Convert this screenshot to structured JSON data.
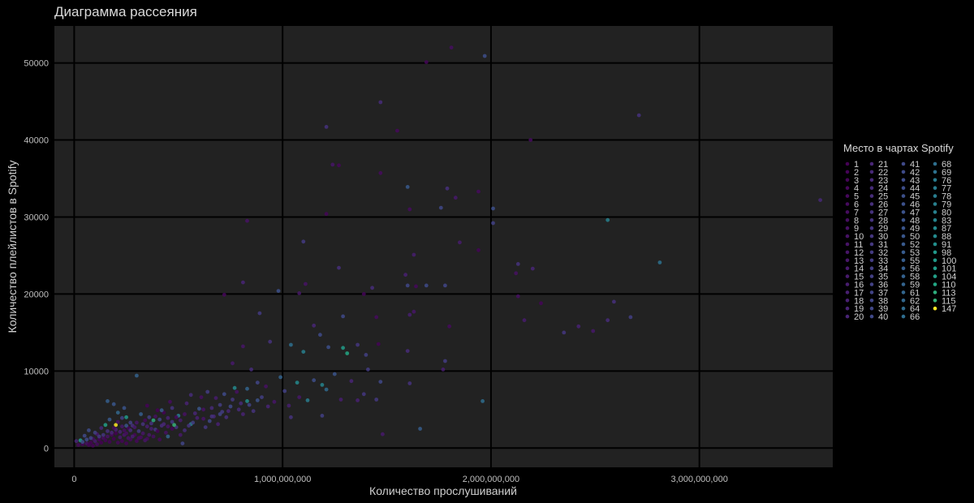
{
  "chart_data": {
    "type": "scatter",
    "title": "Диаграмма рассеяния",
    "xlabel": "Количество прослушиваний",
    "ylabel": "Количество плейлистов в Spotify",
    "xlim": [
      -95000000,
      3640000000
    ],
    "ylim": [
      -2500,
      54800
    ],
    "x_ticks": [
      0,
      1000000000,
      2000000000,
      3000000000
    ],
    "x_tick_labels": [
      "0",
      "1,000,000,000",
      "2,000,000,000",
      "3,000,000,000"
    ],
    "y_ticks": [
      0,
      10000,
      20000,
      30000,
      40000,
      50000
    ],
    "y_tick_labels": [
      "0",
      "10000",
      "20000",
      "30000",
      "40000",
      "50000"
    ],
    "grid": true,
    "legend_title": "Место в чартах Spotify",
    "legend_position": "right",
    "legend_entries": [
      "1",
      "2",
      "3",
      "4",
      "5",
      "6",
      "7",
      "8",
      "9",
      "10",
      "11",
      "12",
      "13",
      "14",
      "15",
      "16",
      "17",
      "18",
      "19",
      "20",
      "21",
      "22",
      "23",
      "24",
      "25",
      "26",
      "27",
      "28",
      "29",
      "30",
      "31",
      "32",
      "33",
      "34",
      "35",
      "36",
      "37",
      "38",
      "39",
      "40",
      "41",
      "42",
      "43",
      "44",
      "45",
      "46",
      "47",
      "48",
      "49",
      "50",
      "52",
      "53",
      "55",
      "56",
      "58",
      "59",
      "61",
      "62",
      "64",
      "66",
      "68",
      "69",
      "76",
      "77",
      "78",
      "79",
      "80",
      "83",
      "87",
      "88",
      "91",
      "98",
      "100",
      "101",
      "104",
      "110",
      "113",
      "115",
      "147"
    ],
    "colors": {
      "background": "#000000",
      "panel": "#222222",
      "grid": "#000000",
      "text": "#cfcfcf",
      "scale": "viridis"
    },
    "points": [
      [
        1810000000,
        52000,
        8
      ],
      [
        1970000000,
        50900,
        44
      ],
      [
        1690000000,
        50100,
        3
      ],
      [
        1470000000,
        44900,
        24
      ],
      [
        2710000000,
        43200,
        27
      ],
      [
        1210000000,
        41700,
        27
      ],
      [
        1550000000,
        41200,
        5
      ],
      [
        2190000000,
        40000,
        7
      ],
      [
        1240000000,
        36800,
        12
      ],
      [
        1270000000,
        36700,
        4
      ],
      [
        1470000000,
        35700,
        6
      ],
      [
        1600000000,
        33900,
        52
      ],
      [
        1790000000,
        33700,
        26
      ],
      [
        1940000000,
        33300,
        6
      ],
      [
        1830000000,
        32500,
        14
      ],
      [
        3580000000,
        32200,
        22
      ],
      [
        1610000000,
        31000,
        7
      ],
      [
        2010000000,
        31100,
        45
      ],
      [
        1760000000,
        31200,
        40
      ],
      [
        1210000000,
        30400,
        3
      ],
      [
        2010000000,
        29200,
        36
      ],
      [
        2560000000,
        29600,
        80
      ],
      [
        830000000,
        29500,
        10
      ],
      [
        1850000000,
        26700,
        15
      ],
      [
        1100000000,
        26800,
        32
      ],
      [
        1630000000,
        25100,
        16
      ],
      [
        1940000000,
        25700,
        3
      ],
      [
        2810000000,
        24100,
        69
      ],
      [
        2130000000,
        23900,
        28
      ],
      [
        1270000000,
        23400,
        26
      ],
      [
        2200000000,
        23300,
        21
      ],
      [
        1590000000,
        22500,
        18
      ],
      [
        2120000000,
        22700,
        9
      ],
      [
        810000000,
        21500,
        20
      ],
      [
        1110000000,
        21300,
        11
      ],
      [
        1600000000,
        21100,
        39
      ],
      [
        1690000000,
        21100,
        42
      ],
      [
        1780000000,
        21100,
        38
      ],
      [
        1640000000,
        21000,
        5
      ],
      [
        1430000000,
        20800,
        25
      ],
      [
        980000000,
        20400,
        46
      ],
      [
        1080000000,
        20100,
        13
      ],
      [
        1390000000,
        20000,
        3
      ],
      [
        720000000,
        19900,
        4
      ],
      [
        2130000000,
        19700,
        8
      ],
      [
        2240000000,
        18800,
        3
      ],
      [
        2590000000,
        19000,
        26
      ],
      [
        1630000000,
        17700,
        12
      ],
      [
        1610000000,
        17300,
        17
      ],
      [
        890000000,
        17500,
        32
      ],
      [
        1290000000,
        17100,
        41
      ],
      [
        1450000000,
        17000,
        6
      ],
      [
        2670000000,
        17000,
        34
      ],
      [
        2160000000,
        16600,
        15
      ],
      [
        2560000000,
        16600,
        24
      ],
      [
        1800000000,
        15800,
        6
      ],
      [
        1150000000,
        15900,
        21
      ],
      [
        2420000000,
        15800,
        19
      ],
      [
        2350000000,
        15000,
        30
      ],
      [
        2490000000,
        15200,
        13
      ],
      [
        1180000000,
        14700,
        42
      ],
      [
        1040000000,
        13400,
        68
      ],
      [
        1100000000,
        12500,
        79
      ],
      [
        1290000000,
        13000,
        101
      ],
      [
        1310000000,
        12300,
        110
      ],
      [
        1220000000,
        13100,
        45
      ],
      [
        940000000,
        13800,
        27
      ],
      [
        810000000,
        13200,
        12
      ],
      [
        1600000000,
        12600,
        24
      ],
      [
        1400000000,
        12100,
        35
      ],
      [
        1360000000,
        13400,
        30
      ],
      [
        1460000000,
        13500,
        3
      ],
      [
        1780000000,
        11300,
        33
      ],
      [
        1770000000,
        10200,
        16
      ],
      [
        1410000000,
        10200,
        33
      ],
      [
        990000000,
        9200,
        59
      ],
      [
        1070000000,
        8500,
        88
      ],
      [
        1190000000,
        8200,
        83
      ],
      [
        1250000000,
        9600,
        48
      ],
      [
        300000000,
        9400,
        58
      ],
      [
        1610000000,
        8400,
        27
      ],
      [
        1960000000,
        6100,
        66
      ],
      [
        1660000000,
        2500,
        55
      ],
      [
        1480000000,
        1800,
        14
      ],
      [
        760000000,
        11000,
        14
      ],
      [
        850000000,
        10200,
        25
      ],
      [
        920000000,
        8000,
        9
      ],
      [
        1010000000,
        7400,
        36
      ],
      [
        1150000000,
        8800,
        44
      ],
      [
        1330000000,
        8700,
        20
      ],
      [
        1470000000,
        8600,
        40
      ],
      [
        1390000000,
        7000,
        30
      ],
      [
        1280000000,
        6300,
        16
      ],
      [
        1080000000,
        6600,
        13
      ],
      [
        1210000000,
        7600,
        64
      ],
      [
        1360000000,
        6200,
        18
      ],
      [
        1450000000,
        6300,
        31
      ],
      [
        1040000000,
        4000,
        28
      ],
      [
        1030000000,
        5500,
        17
      ],
      [
        1120000000,
        6200,
        77
      ],
      [
        1190000000,
        4200,
        35
      ],
      [
        830000000,
        6100,
        91
      ],
      [
        880000000,
        6200,
        47
      ],
      [
        720000000,
        7000,
        42
      ],
      [
        770000000,
        7800,
        87
      ],
      [
        560000000,
        3100,
        76
      ],
      [
        620000000,
        3800,
        11
      ],
      [
        660000000,
        5200,
        23
      ],
      [
        700000000,
        4400,
        37
      ],
      [
        610000000,
        6600,
        8
      ],
      [
        540000000,
        5800,
        19
      ],
      [
        470000000,
        5200,
        29
      ],
      [
        430000000,
        4600,
        2
      ],
      [
        390000000,
        4100,
        9
      ],
      [
        360000000,
        4000,
        34
      ],
      [
        340000000,
        3600,
        5
      ],
      [
        300000000,
        3300,
        12
      ],
      [
        280000000,
        2900,
        26
      ],
      [
        260000000,
        2600,
        3
      ],
      [
        240000000,
        2300,
        7
      ],
      [
        220000000,
        2100,
        18
      ],
      [
        200000000,
        1900,
        1
      ],
      [
        180000000,
        1700,
        4
      ],
      [
        160000000,
        1500,
        10
      ],
      [
        140000000,
        1300,
        6
      ],
      [
        120000000,
        1100,
        2
      ],
      [
        100000000,
        900,
        15
      ],
      [
        80000000,
        700,
        1
      ],
      [
        60000000,
        600,
        9
      ],
      [
        40000000,
        500,
        3
      ],
      [
        20000000,
        400,
        5
      ],
      [
        10000000,
        900,
        20
      ],
      [
        30000000,
        1000,
        98
      ],
      [
        50000000,
        1600,
        41
      ],
      [
        70000000,
        2300,
        43
      ],
      [
        90000000,
        1200,
        8
      ],
      [
        110000000,
        1800,
        13
      ],
      [
        130000000,
        2600,
        22
      ],
      [
        150000000,
        3000,
        104
      ],
      [
        170000000,
        3700,
        52
      ],
      [
        190000000,
        5700,
        50
      ],
      [
        210000000,
        4600,
        62
      ],
      [
        230000000,
        3900,
        36
      ],
      [
        250000000,
        2900,
        48
      ],
      [
        270000000,
        2300,
        24
      ],
      [
        290000000,
        1700,
        4
      ],
      [
        310000000,
        1300,
        6
      ],
      [
        330000000,
        1900,
        12
      ],
      [
        350000000,
        2800,
        16
      ],
      [
        370000000,
        3200,
        27
      ],
      [
        390000000,
        2400,
        31
      ],
      [
        410000000,
        3700,
        38
      ],
      [
        430000000,
        3100,
        21
      ],
      [
        450000000,
        2800,
        11
      ],
      [
        470000000,
        3400,
        32
      ],
      [
        490000000,
        2700,
        28
      ],
      [
        510000000,
        1700,
        14
      ],
      [
        530000000,
        2300,
        25
      ],
      [
        550000000,
        2900,
        29
      ],
      [
        570000000,
        3300,
        35
      ],
      [
        590000000,
        3900,
        17
      ],
      [
        630000000,
        2700,
        30
      ],
      [
        650000000,
        3500,
        39
      ],
      [
        670000000,
        4100,
        22
      ],
      [
        690000000,
        3100,
        18
      ],
      [
        710000000,
        4700,
        33
      ],
      [
        730000000,
        4000,
        26
      ],
      [
        750000000,
        5400,
        40
      ],
      [
        790000000,
        5000,
        23
      ],
      [
        810000000,
        4400,
        19
      ],
      [
        840000000,
        5600,
        37
      ],
      [
        860000000,
        4800,
        28
      ],
      [
        900000000,
        6600,
        34
      ],
      [
        930000000,
        5400,
        20
      ],
      [
        960000000,
        6000,
        12
      ],
      [
        520000000,
        600,
        38
      ],
      [
        450000000,
        1500,
        61
      ],
      [
        420000000,
        4900,
        53
      ],
      [
        320000000,
        4400,
        56
      ],
      [
        380000000,
        3600,
        113
      ],
      [
        480000000,
        3000,
        115
      ],
      [
        200000000,
        3000,
        147
      ],
      [
        250000000,
        4000,
        100
      ],
      [
        160000000,
        6100,
        56
      ],
      [
        240000000,
        5200,
        49
      ],
      [
        350000000,
        5500,
        2
      ],
      [
        460000000,
        6000,
        7
      ],
      [
        560000000,
        6900,
        24
      ],
      [
        640000000,
        7300,
        33
      ],
      [
        680000000,
        6500,
        15
      ],
      [
        780000000,
        7300,
        9
      ],
      [
        880000000,
        8500,
        38
      ],
      [
        830000000,
        7700,
        60
      ],
      [
        600000000,
        5100,
        50
      ],
      [
        500000000,
        4200,
        78
      ],
      [
        400000000,
        4900,
        1
      ],
      [
        150000000,
        1000,
        3
      ],
      [
        170000000,
        800,
        2
      ],
      [
        190000000,
        1200,
        1
      ],
      [
        210000000,
        700,
        4
      ],
      [
        230000000,
        900,
        3
      ],
      [
        250000000,
        600,
        2
      ],
      [
        270000000,
        1100,
        5
      ],
      [
        130000000,
        700,
        1
      ],
      [
        110000000,
        500,
        6
      ],
      [
        90000000,
        300,
        2
      ],
      [
        70000000,
        400,
        3
      ],
      [
        350000000,
        1200,
        7
      ],
      [
        380000000,
        1500,
        8
      ],
      [
        410000000,
        1100,
        5
      ],
      [
        440000000,
        2000,
        9
      ],
      [
        300000000,
        900,
        4
      ],
      [
        320000000,
        1400,
        6
      ],
      [
        340000000,
        1000,
        11
      ],
      [
        360000000,
        1700,
        13
      ],
      [
        280000000,
        1500,
        16
      ],
      [
        260000000,
        1300,
        10
      ],
      [
        240000000,
        1700,
        12
      ],
      [
        220000000,
        1400,
        14
      ],
      [
        200000000,
        2400,
        18
      ],
      [
        180000000,
        2000,
        20
      ],
      [
        160000000,
        2200,
        26
      ],
      [
        140000000,
        1700,
        29
      ],
      [
        120000000,
        1500,
        31
      ],
      [
        100000000,
        2000,
        35
      ],
      [
        80000000,
        1300,
        37
      ],
      [
        60000000,
        1100,
        42
      ],
      [
        40000000,
        800,
        45
      ],
      [
        580000000,
        4500,
        21
      ],
      [
        620000000,
        5000,
        10
      ],
      [
        660000000,
        4100,
        27
      ],
      [
        700000000,
        5600,
        33
      ],
      [
        740000000,
        4800,
        20
      ],
      [
        760000000,
        6300,
        31
      ],
      [
        800000000,
        5800,
        24
      ],
      [
        530000000,
        4400,
        9
      ],
      [
        510000000,
        3600,
        15
      ],
      [
        490000000,
        4000,
        6
      ],
      [
        470000000,
        2500,
        3
      ],
      [
        450000000,
        3900,
        19
      ],
      [
        420000000,
        2900,
        23
      ],
      [
        400000000,
        2200,
        2
      ],
      [
        370000000,
        2500,
        17
      ],
      [
        330000000,
        3100,
        28
      ],
      [
        310000000,
        2200,
        32
      ],
      [
        290000000,
        2700,
        14
      ],
      [
        270000000,
        3300,
        36
      ],
      [
        250000000,
        1900,
        8
      ],
      [
        230000000,
        2800,
        13
      ],
      [
        210000000,
        3400,
        11
      ],
      [
        190000000,
        2600,
        7
      ]
    ]
  }
}
